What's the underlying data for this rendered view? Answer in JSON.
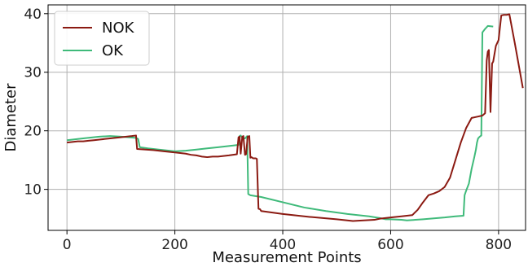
{
  "chart_data": {
    "type": "line",
    "title": "",
    "xlabel": "Measurement Points",
    "ylabel": "Diameter",
    "xlim": [
      -35,
      850
    ],
    "ylim": [
      3,
      41.5
    ],
    "xticks": [
      0,
      200,
      400,
      600,
      800
    ],
    "yticks": [
      10,
      20,
      30,
      40
    ],
    "grid": true,
    "legend_position": "top-left",
    "series": [
      {
        "name": "NOK",
        "color": "#8b1a12",
        "x": [
          0,
          10,
          20,
          30,
          40,
          50,
          60,
          80,
          100,
          120,
          128,
          130,
          160,
          180,
          200,
          210,
          220,
          230,
          240,
          250,
          260,
          270,
          280,
          290,
          300,
          315,
          318,
          320,
          322,
          325,
          327,
          330,
          332,
          335,
          338,
          340,
          342,
          345,
          350,
          352,
          355,
          358,
          360,
          400,
          450,
          500,
          530,
          550,
          570,
          580,
          590,
          600,
          620,
          640,
          650,
          660,
          670,
          680,
          690,
          700,
          710,
          720,
          730,
          740,
          750,
          760,
          770,
          775,
          778,
          780,
          782,
          785,
          788,
          790,
          795,
          800,
          805,
          810,
          815,
          820,
          830,
          845
        ],
        "y": [
          18.0,
          18.1,
          18.2,
          18.2,
          18.3,
          18.4,
          18.5,
          18.7,
          18.9,
          19.1,
          19.2,
          16.9,
          16.7,
          16.5,
          16.3,
          16.2,
          16.1,
          15.9,
          15.8,
          15.6,
          15.5,
          15.6,
          15.6,
          15.7,
          15.8,
          16.0,
          18.9,
          19.0,
          16.1,
          19.0,
          19.1,
          15.9,
          16.0,
          19.0,
          19.1,
          15.4,
          15.5,
          15.3,
          15.3,
          15.2,
          6.7,
          6.6,
          6.3,
          5.8,
          5.3,
          4.9,
          4.6,
          4.7,
          4.8,
          5.0,
          5.1,
          5.2,
          5.4,
          5.6,
          6.5,
          7.8,
          9.0,
          9.3,
          9.7,
          10.4,
          12.0,
          15.0,
          18.0,
          20.5,
          22.2,
          22.4,
          22.6,
          23.0,
          32.0,
          33.5,
          33.8,
          23.2,
          31.5,
          31.8,
          34.5,
          35.5,
          39.7,
          39.8,
          39.8,
          39.9,
          35.0,
          27.3
        ]
      },
      {
        "name": "OK",
        "color": "#3fba7a",
        "x": [
          0,
          30,
          60,
          80,
          100,
          128,
          132,
          135,
          150,
          170,
          200,
          220,
          240,
          260,
          280,
          300,
          318,
          320,
          322,
          325,
          330,
          334,
          336,
          340,
          360,
          400,
          440,
          480,
          520,
          560,
          580,
          590,
          600,
          620,
          630,
          660,
          700,
          720,
          735,
          737,
          740,
          745,
          750,
          755,
          758,
          760,
          762,
          765,
          768,
          770,
          775,
          780,
          790
        ],
        "y": [
          18.4,
          18.7,
          19.0,
          19.1,
          19.0,
          18.8,
          18.6,
          17.2,
          17.0,
          16.8,
          16.5,
          16.6,
          16.8,
          17.0,
          17.2,
          17.4,
          17.6,
          19.1,
          19.2,
          18.8,
          18.7,
          19.1,
          9.2,
          9.0,
          8.7,
          7.8,
          6.9,
          6.3,
          5.8,
          5.4,
          5.1,
          4.9,
          4.9,
          4.8,
          4.7,
          4.9,
          5.2,
          5.4,
          5.5,
          9.0,
          9.8,
          11.0,
          13.5,
          15.5,
          16.8,
          18.0,
          18.7,
          19.0,
          19.2,
          36.8,
          37.4,
          37.9,
          37.8
        ]
      }
    ]
  }
}
